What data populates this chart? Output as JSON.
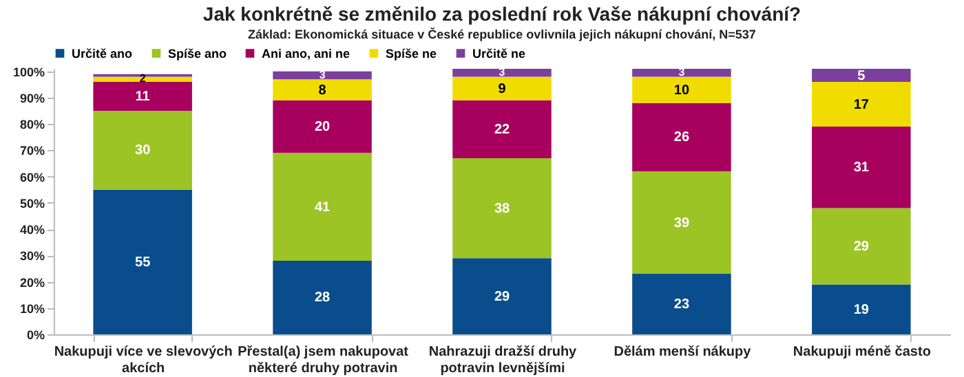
{
  "chart_data": {
    "type": "bar",
    "stacked": true,
    "title": "Jak konkrétně se změnilo za poslední rok Vaše nákupní chování?",
    "subtitle": "Základ: Ekonomická situace v České republice ovlivnila jejich nákupní chování, N=537",
    "categories": [
      "Nakupuji více ve slevových akcích",
      "Přestal(a) jsem nakupovat některé druhy potravin",
      "Nahrazuji dražší druhy potravin levnějšími",
      "Dělám menší nákupy",
      "Nakupuji méně často"
    ],
    "series": [
      {
        "name": "Určitě ano",
        "color": "#0a4d8c",
        "values": [
          55,
          28,
          29,
          23,
          19
        ],
        "value_labels": [
          "55",
          "28",
          "29",
          "23",
          "19"
        ]
      },
      {
        "name": "Spíše ano",
        "color": "#9bc424",
        "values": [
          30,
          41,
          38,
          39,
          29
        ],
        "value_labels": [
          "30",
          "41",
          "38",
          "39",
          "29"
        ]
      },
      {
        "name": "Ani ano, ani ne",
        "color": "#a8005f",
        "values": [
          11,
          20,
          22,
          26,
          31
        ],
        "value_labels": [
          "11",
          "20",
          "22",
          "26",
          "31"
        ]
      },
      {
        "name": "Spíše ne",
        "color": "#f0dc00",
        "values": [
          2,
          8,
          9,
          10,
          17
        ],
        "value_labels": [
          "2",
          "8",
          "9",
          "10",
          "17"
        ]
      },
      {
        "name": "Určitě ne",
        "color": "#7b3f9e",
        "values": [
          1,
          3,
          3,
          3,
          5
        ],
        "value_labels": [
          null,
          "3",
          "3",
          "3",
          "5"
        ]
      }
    ],
    "ylim": [
      0,
      101
    ],
    "yticks": [
      {
        "value": 0,
        "label": "0%"
      },
      {
        "value": 10,
        "label": "10%"
      },
      {
        "value": 20,
        "label": "20%"
      },
      {
        "value": 30,
        "label": "30%"
      },
      {
        "value": 40,
        "label": "40%"
      },
      {
        "value": 50,
        "label": "50%"
      },
      {
        "value": 60,
        "label": "60%"
      },
      {
        "value": 70,
        "label": "70%"
      },
      {
        "value": 80,
        "label": "80%"
      },
      {
        "value": 90,
        "label": "90%"
      },
      {
        "value": 100,
        "label": "100%"
      }
    ],
    "legend": "top",
    "grid": false
  }
}
